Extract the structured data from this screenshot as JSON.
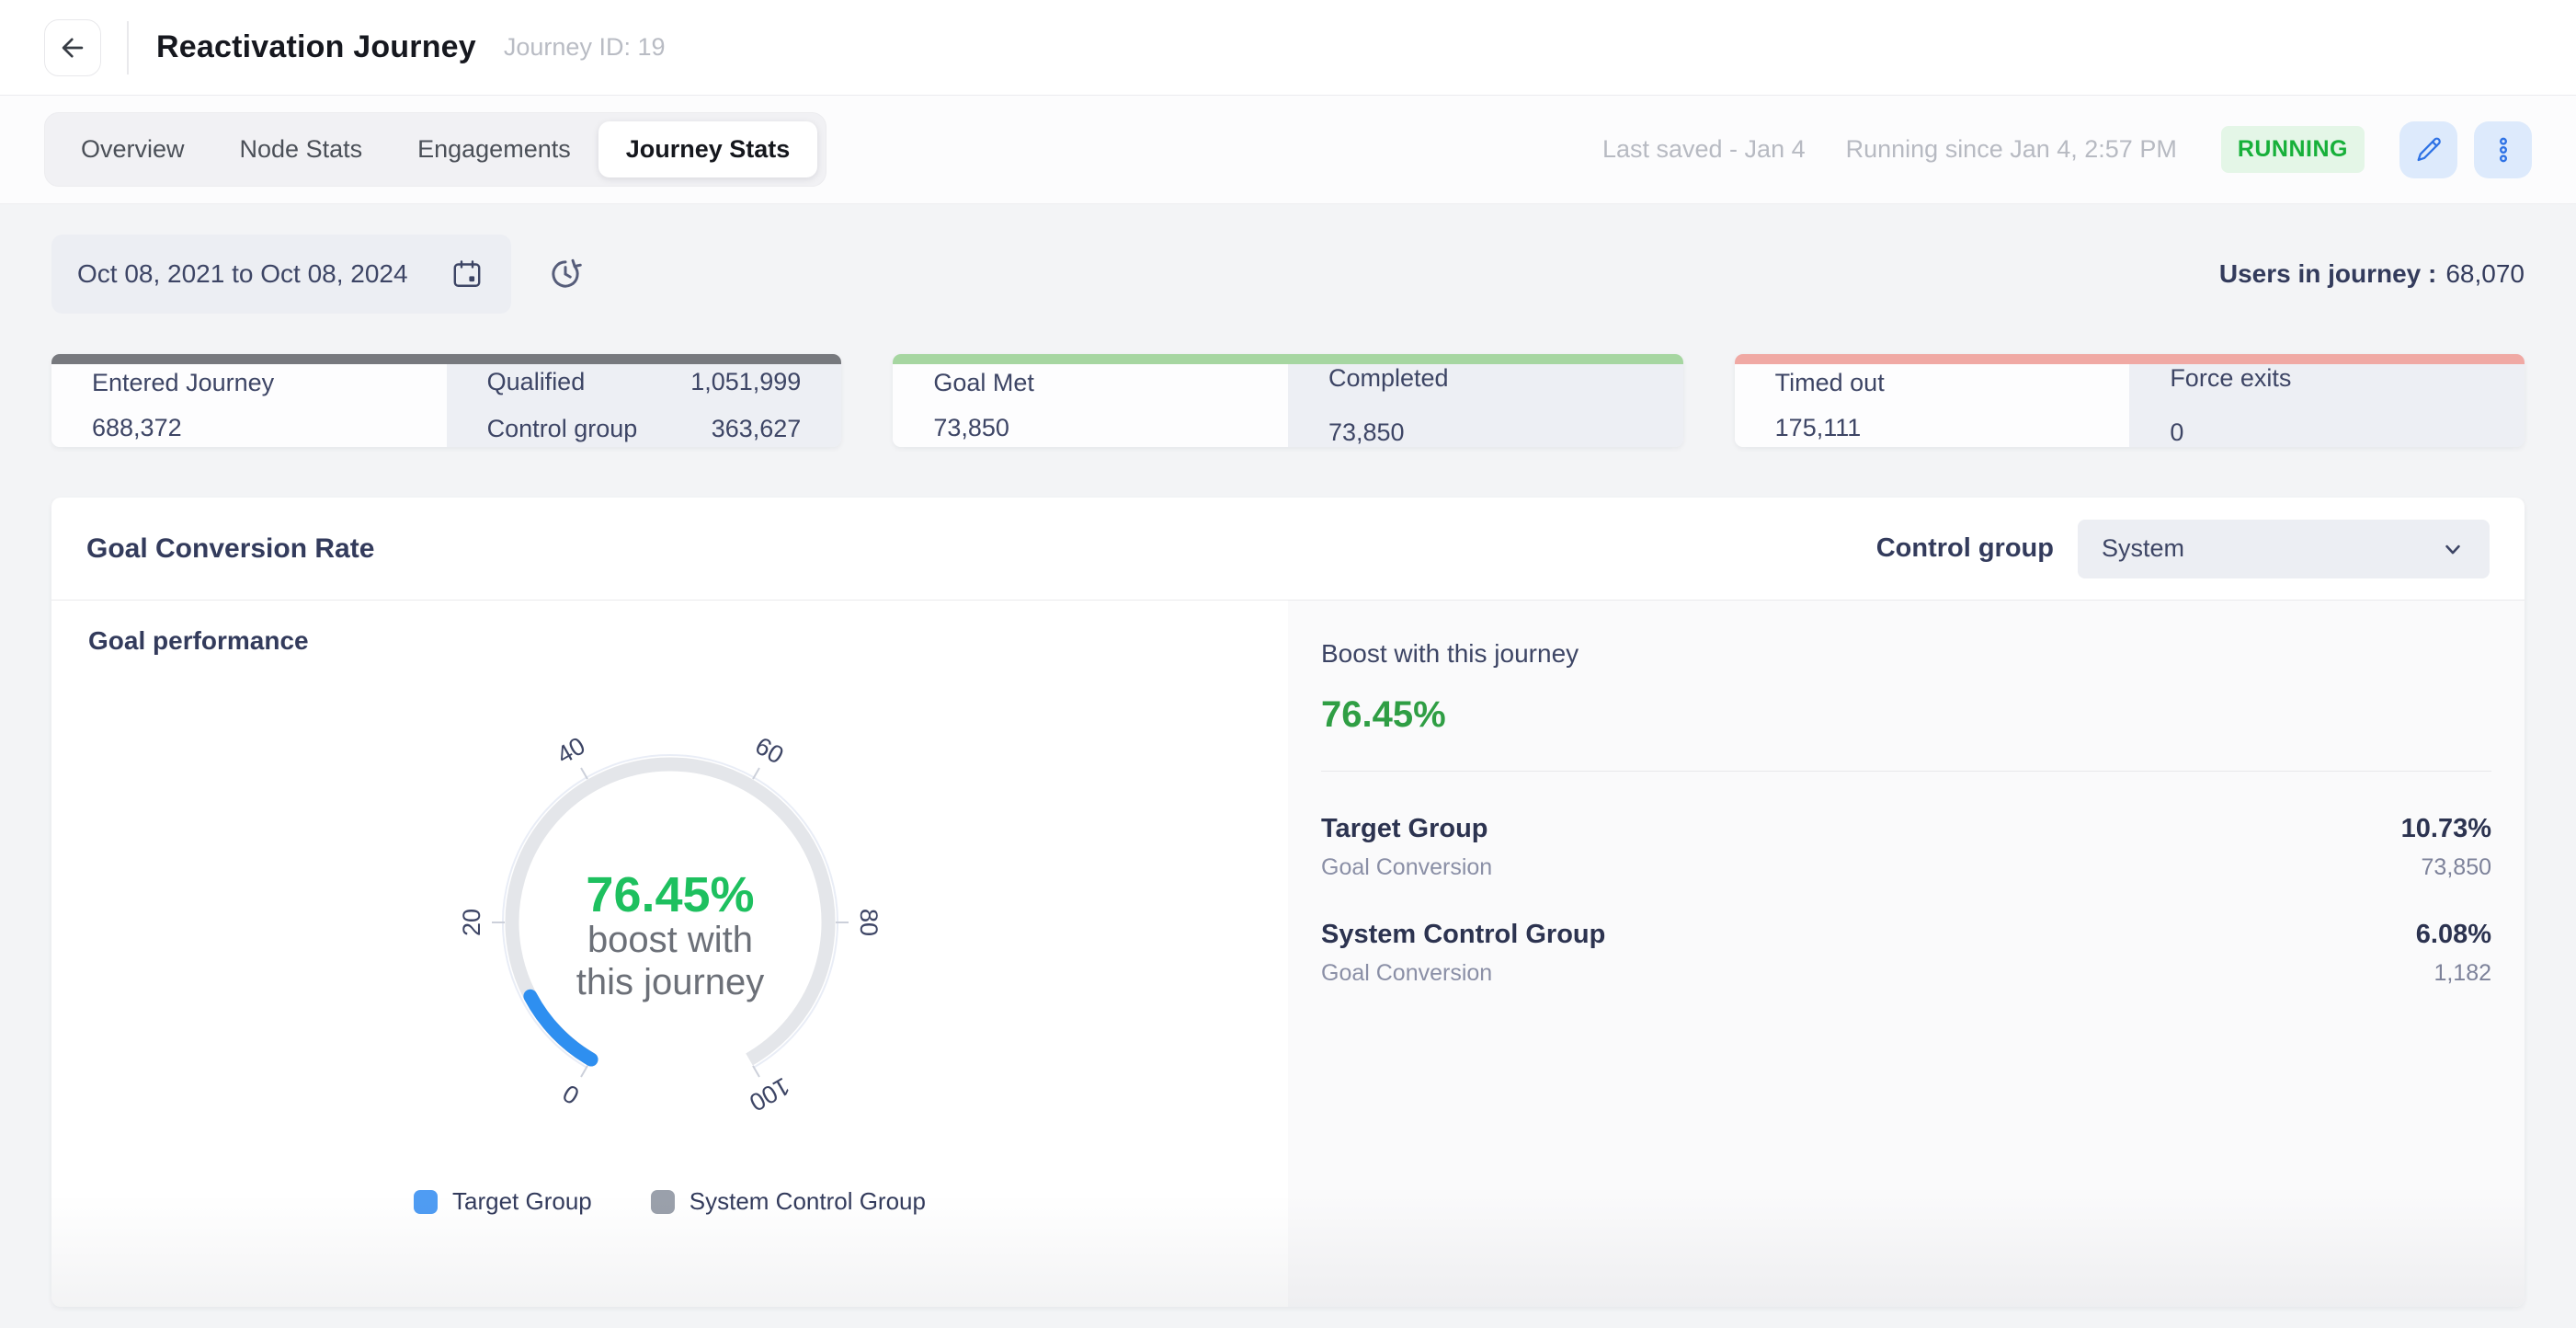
{
  "header": {
    "title": "Reactivation Journey",
    "journey_id": "Journey ID: 19"
  },
  "tabs": {
    "items": [
      {
        "label": "Overview"
      },
      {
        "label": "Node Stats"
      },
      {
        "label": "Engagements"
      },
      {
        "label": "Journey Stats"
      }
    ],
    "active_tab": "Journey Stats",
    "last_saved": "Last saved - Jan 4",
    "running_since": "Running since Jan 4, 2:57 PM",
    "status_badge": "RUNNING",
    "status_color": "#17b03a",
    "status_bg": "#e4f6e7"
  },
  "filters": {
    "date_range": "Oct 08, 2021 to Oct 08, 2024",
    "users_label": "Users in journey :",
    "users_value": "68,070"
  },
  "stat_cards": [
    {
      "accent": "#77797e",
      "primary": {
        "label": "Entered Journey",
        "value": "688,372"
      },
      "secondary": [
        {
          "label": "Qualified",
          "value": "1,051,999"
        },
        {
          "label": "Control group",
          "value": "363,627"
        }
      ]
    },
    {
      "accent": "#a6d6a1",
      "primary": {
        "label": "Goal Met",
        "value": "73,850"
      },
      "secondary": [
        {
          "label": "Completed",
          "value": "73,850"
        }
      ]
    },
    {
      "accent": "#f0a9a4",
      "primary": {
        "label": "Timed out",
        "value": "175,111"
      },
      "secondary": [
        {
          "label": "Force exits",
          "value": "0"
        }
      ]
    }
  ],
  "goal_conversion": {
    "title": "Goal Conversion Rate",
    "control_group_label": "Control group",
    "control_group_value": "System",
    "section_title": "Goal performance",
    "boost_label": "Boost with this journey",
    "boost_value": "76.45%",
    "boost_color": "#2f9e44",
    "rows": [
      {
        "name": "Target Group",
        "sub": "Goal Conversion",
        "pct": "10.73%",
        "count": "73,850"
      },
      {
        "name": "System Control Group",
        "sub": "Goal Conversion",
        "pct": "6.08%",
        "count": "1,182"
      }
    ]
  },
  "chart_data": {
    "type": "gauge",
    "title": "Goal performance",
    "min": 0,
    "max": 100,
    "start_angle": 240,
    "end_angle": -60,
    "tick_values": [
      0,
      20,
      40,
      60,
      80,
      100
    ],
    "series": [
      {
        "name": "Target Group",
        "value": 10.73,
        "color": "#2e8ff0"
      },
      {
        "name": "System Control Group",
        "value": 6.08,
        "color": "#9aa0ab"
      }
    ],
    "center_value": "76.45%",
    "center_label_lines": [
      "boost with",
      "this journey"
    ],
    "center_color": "#1ec05f",
    "center_label_color": "#6c7078",
    "track_color": "#e4e6ea",
    "outer_ring_color": "#e9edf6",
    "tick_color": "#ccd0da",
    "label_color": "#3d4565",
    "legend": [
      {
        "label": "Target Group",
        "color": "#4f9cf3"
      },
      {
        "label": "System Control Group",
        "color": "#9aa0ab"
      }
    ]
  }
}
